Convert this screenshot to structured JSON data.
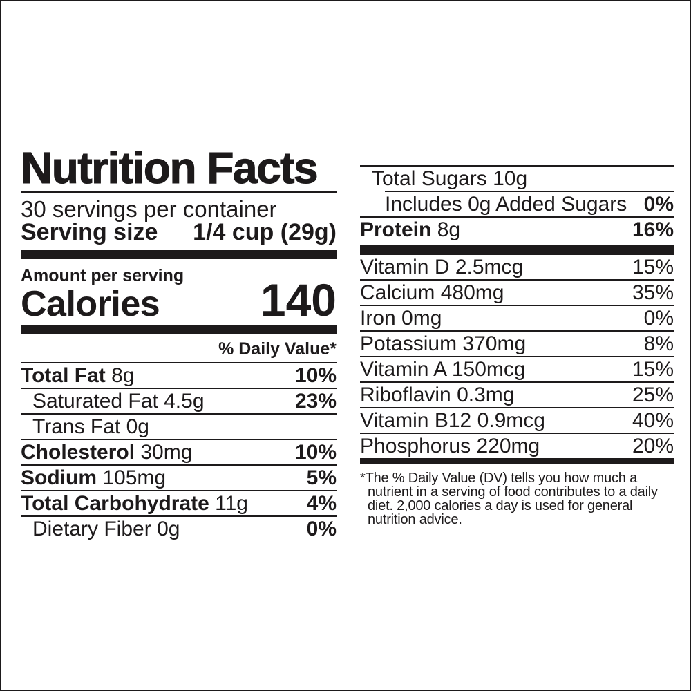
{
  "colors": {
    "ink": "#1d1a1b",
    "background": "#ffffff"
  },
  "label": {
    "title": "Nutrition Facts",
    "servings_per_container": "30 servings per container",
    "serving_size": {
      "label": "Serving size",
      "value": "1/4 cup (29g)"
    },
    "amount_per_serving": "Amount per serving",
    "calories": {
      "label": "Calories",
      "value": "140"
    },
    "daily_value_header": "% Daily Value*",
    "left_rows": [
      {
        "name": "Total Fat",
        "amount": "8g",
        "dv": "10%"
      },
      {
        "name": "Saturated Fat",
        "amount": "4.5g",
        "dv": "23%"
      },
      {
        "name": "Trans Fat",
        "amount": "0g",
        "dv": ""
      },
      {
        "name": "Cholesterol",
        "amount": "30mg",
        "dv": "10%"
      },
      {
        "name": "Sodium",
        "amount": "105mg",
        "dv": "5%"
      },
      {
        "name": "Total Carbohydrate",
        "amount": "11g",
        "dv": "4%"
      },
      {
        "name": "Dietary Fiber",
        "amount": "0g",
        "dv": "0%"
      }
    ],
    "right_rows": [
      {
        "name": "Total Sugars",
        "amount": "10g",
        "dv": ""
      },
      {
        "name": "Includes 0g Added Sugars",
        "amount": "",
        "dv": "0%"
      },
      {
        "name": "Protein",
        "amount": "8g",
        "dv": "16%"
      }
    ],
    "vitamin_rows": [
      {
        "name": "Vitamin D",
        "amount": "2.5mcg",
        "dv": "15%"
      },
      {
        "name": "Calcium",
        "amount": "480mg",
        "dv": "35%"
      },
      {
        "name": "Iron",
        "amount": "0mg",
        "dv": "0%"
      },
      {
        "name": "Potassium",
        "amount": "370mg",
        "dv": "8%"
      },
      {
        "name": "Vitamin A",
        "amount": "150mcg",
        "dv": "15%"
      },
      {
        "name": "Riboflavin",
        "amount": "0.3mg",
        "dv": "25%"
      },
      {
        "name": "Vitamin B12",
        "amount": "0.9mcg",
        "dv": "40%"
      },
      {
        "name": "Phosphorus",
        "amount": "220mg",
        "dv": "20%"
      }
    ],
    "footnote_lines": [
      "*The % Daily Value (DV) tells you how much a",
      "nutrient in a serving of food contributes to a daily",
      "diet. 2,000 calories a day is used for general",
      "nutrition advice."
    ]
  }
}
